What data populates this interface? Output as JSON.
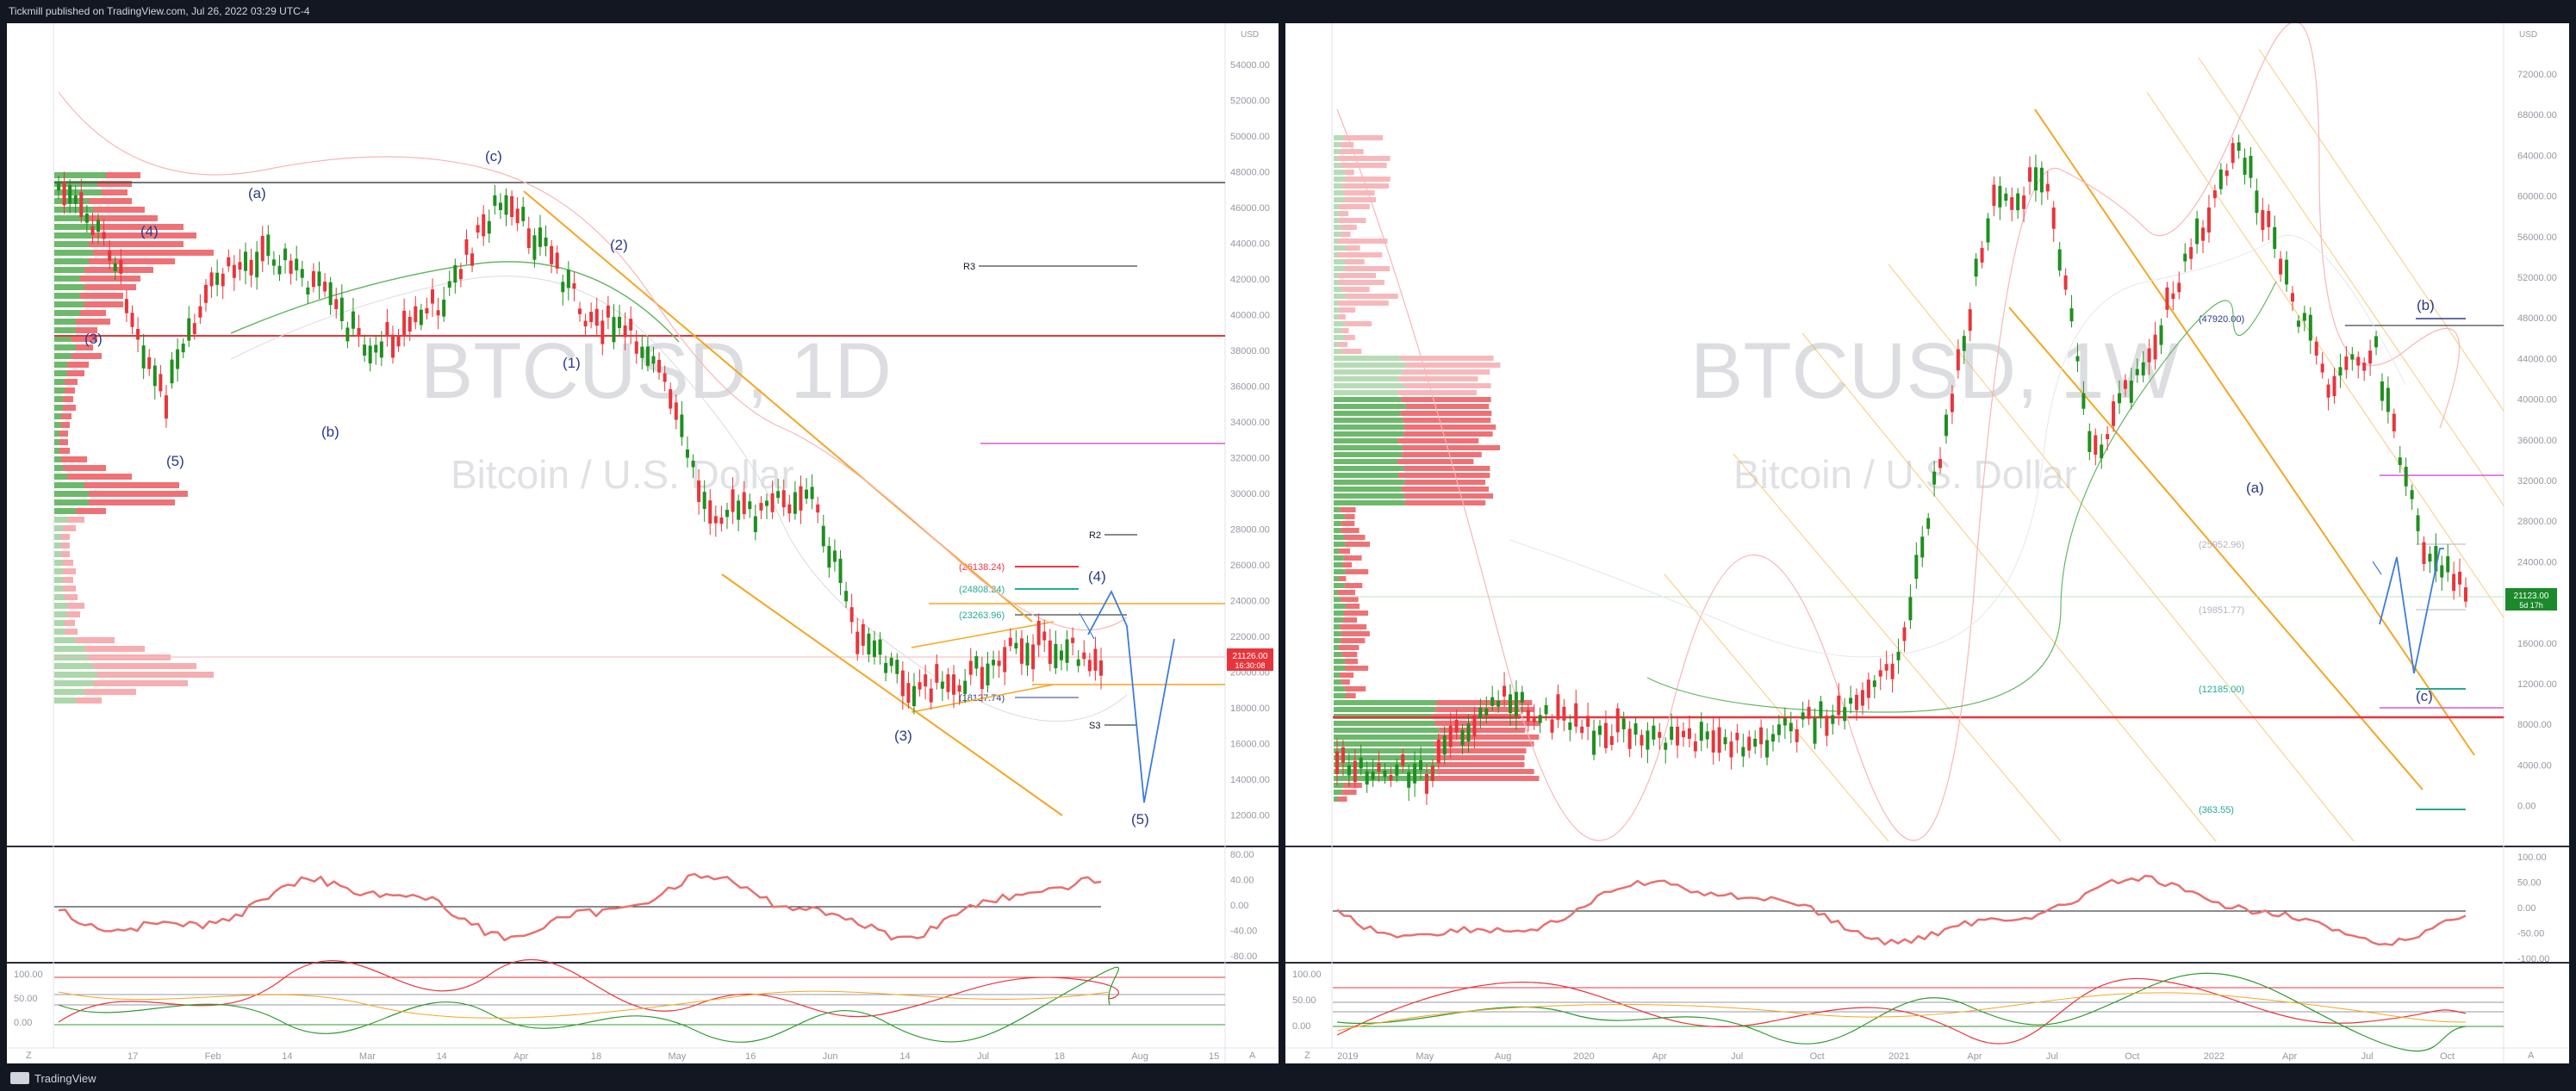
{
  "header": {
    "published": "Tickmill published on TradingView.com, Jul 26, 2022 03:29 UTC-4"
  },
  "footer": {
    "brand": "TradingView"
  },
  "left_chart": {
    "symbol_watermark": "BTCUSD, 1D",
    "name_watermark": "Bitcoin / U.S. Dollar",
    "currency": "USD",
    "price_ticks": [
      "54000.00",
      "52000.00",
      "50000.00",
      "48000.00",
      "46000.00",
      "44000.00",
      "42000.00",
      "40000.00",
      "38000.00",
      "36000.00",
      "34000.00",
      "32000.00",
      "30000.00",
      "28000.00",
      "26000.00",
      "24000.00",
      "22000.00",
      "20000.00",
      "18000.00",
      "16000.00",
      "14000.00",
      "12000.00"
    ],
    "last_price": "21126.00",
    "countdown": "16:30:08",
    "time_labels": [
      "17",
      "Feb",
      "14",
      "Mar",
      "14",
      "Apr",
      "18",
      "May",
      "16",
      "Jun",
      "14",
      "Jul",
      "18",
      "Aug",
      "15"
    ],
    "wave_labels": [
      "(c)",
      "(a)",
      "(4)",
      "(2)",
      "(3)",
      "(b)",
      "(1)",
      "(5)",
      "(3)",
      "(4)",
      "(5)"
    ],
    "pivot_labels": [
      "R3",
      "R2",
      "S3"
    ],
    "level_labels": [
      {
        "text": "(26138.24)",
        "color": "#f23645"
      },
      {
        "text": "(24808.24)",
        "color": "#22ab94"
      },
      {
        "text": "(23263.96)",
        "color": "#22ab94"
      },
      {
        "text": "(18127.74)",
        "color": "#2a3a8c"
      }
    ],
    "rsi_ticks": [
      "80.00",
      "40.00",
      "0.00",
      "-40.00",
      "-80.00"
    ],
    "stoch_ticks": [
      "100.00",
      "50.00",
      "0.00"
    ],
    "corner_left": "Z",
    "corner_right": "A"
  },
  "right_chart": {
    "symbol_watermark": "BTCUSD, 1W",
    "name_watermark": "Bitcoin / U.S. Dollar",
    "currency": "USD",
    "price_ticks": [
      "72000.00",
      "68000.00",
      "64000.00",
      "60000.00",
      "56000.00",
      "52000.00",
      "48000.00",
      "44000.00",
      "40000.00",
      "36000.00",
      "32000.00",
      "28000.00",
      "24000.00",
      "20000.00",
      "16000.00",
      "12000.00",
      "8000.00",
      "4000.00",
      "0.00"
    ],
    "last_price": "21123.00",
    "countdown": "5d 17h",
    "time_labels": [
      "2019",
      "May",
      "Aug",
      "2020",
      "Apr",
      "Jul",
      "Oct",
      "2021",
      "Apr",
      "Jul",
      "Oct",
      "2022",
      "Apr",
      "Jul",
      "Oct"
    ],
    "wave_labels": [
      "(b)",
      "(a)",
      "(c)"
    ],
    "level_labels": [
      {
        "text": "(47920.00)",
        "color": "#2a3a8c"
      },
      {
        "text": "(25952.96)",
        "color": "#b2b5be"
      },
      {
        "text": "(19851.77)",
        "color": "#b2b5be"
      },
      {
        "text": "(12185.00)",
        "color": "#22ab94"
      },
      {
        "text": "(363.55)",
        "color": "#22ab94"
      }
    ],
    "rsi_ticks": [
      "100.00",
      "50.00",
      "0.00",
      "-50.00",
      "-100.00"
    ],
    "stoch_ticks": [
      "100.00",
      "50.00",
      "0.00"
    ],
    "corner_left": "Z",
    "corner_right": "A"
  },
  "colors": {
    "up": "#2e9b2e",
    "down": "#e8353b",
    "trend": "#f5a623",
    "projection": "#3d7ddb"
  }
}
